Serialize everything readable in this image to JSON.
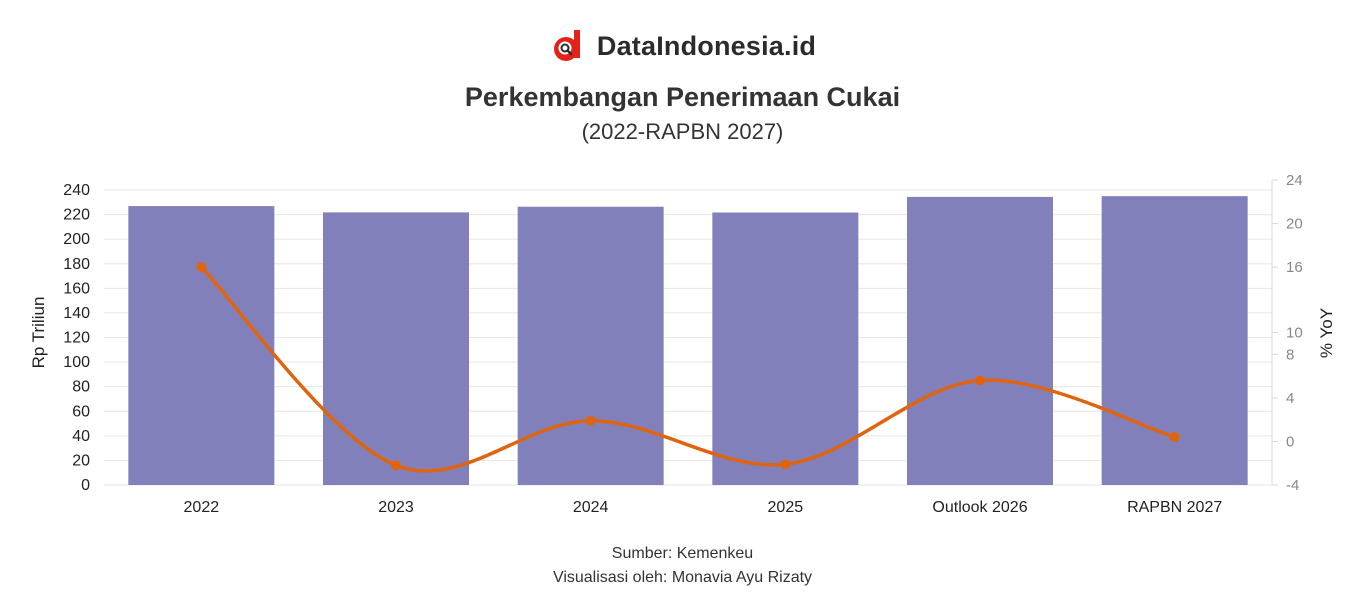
{
  "brand": {
    "name": "DataIndonesia.id",
    "logo_icon": "dataindonesia-logo-icon",
    "logo_color": "#e2231a"
  },
  "title": "Perkembangan Penerimaan Cukai",
  "subtitle": "(2022-RAPBN 2027)",
  "source": "Sumber: Kemenkeu",
  "credit": "Visualisasi oleh: Monavia Ayu Rizaty",
  "chart_data": {
    "type": "bar",
    "categories": [
      "2022",
      "2023",
      "2024",
      "2025",
      "Outlook 2026",
      "RAPBN 2027"
    ],
    "series": [
      {
        "type": "bar",
        "axis": "left",
        "color": "#8180ba",
        "values": [
          226.9,
          221.8,
          226.4,
          221.7,
          234.4,
          235.0
        ]
      },
      {
        "type": "line",
        "axis": "right",
        "color": "#e0640f",
        "smooth": true,
        "values": [
          16.0,
          -2.2,
          1.9,
          -2.1,
          5.6,
          0.4
        ]
      }
    ],
    "ylabel": "Rp Triliun",
    "y2label": "% YoY",
    "ylim": [
      0,
      240
    ],
    "yticks": [
      0,
      20,
      40,
      60,
      80,
      100,
      120,
      140,
      160,
      180,
      200,
      220,
      240
    ],
    "y2lim": [
      -4,
      24
    ],
    "y2ticks": [
      -4,
      0,
      4,
      8,
      10,
      16,
      20,
      24
    ],
    "grid": true
  }
}
